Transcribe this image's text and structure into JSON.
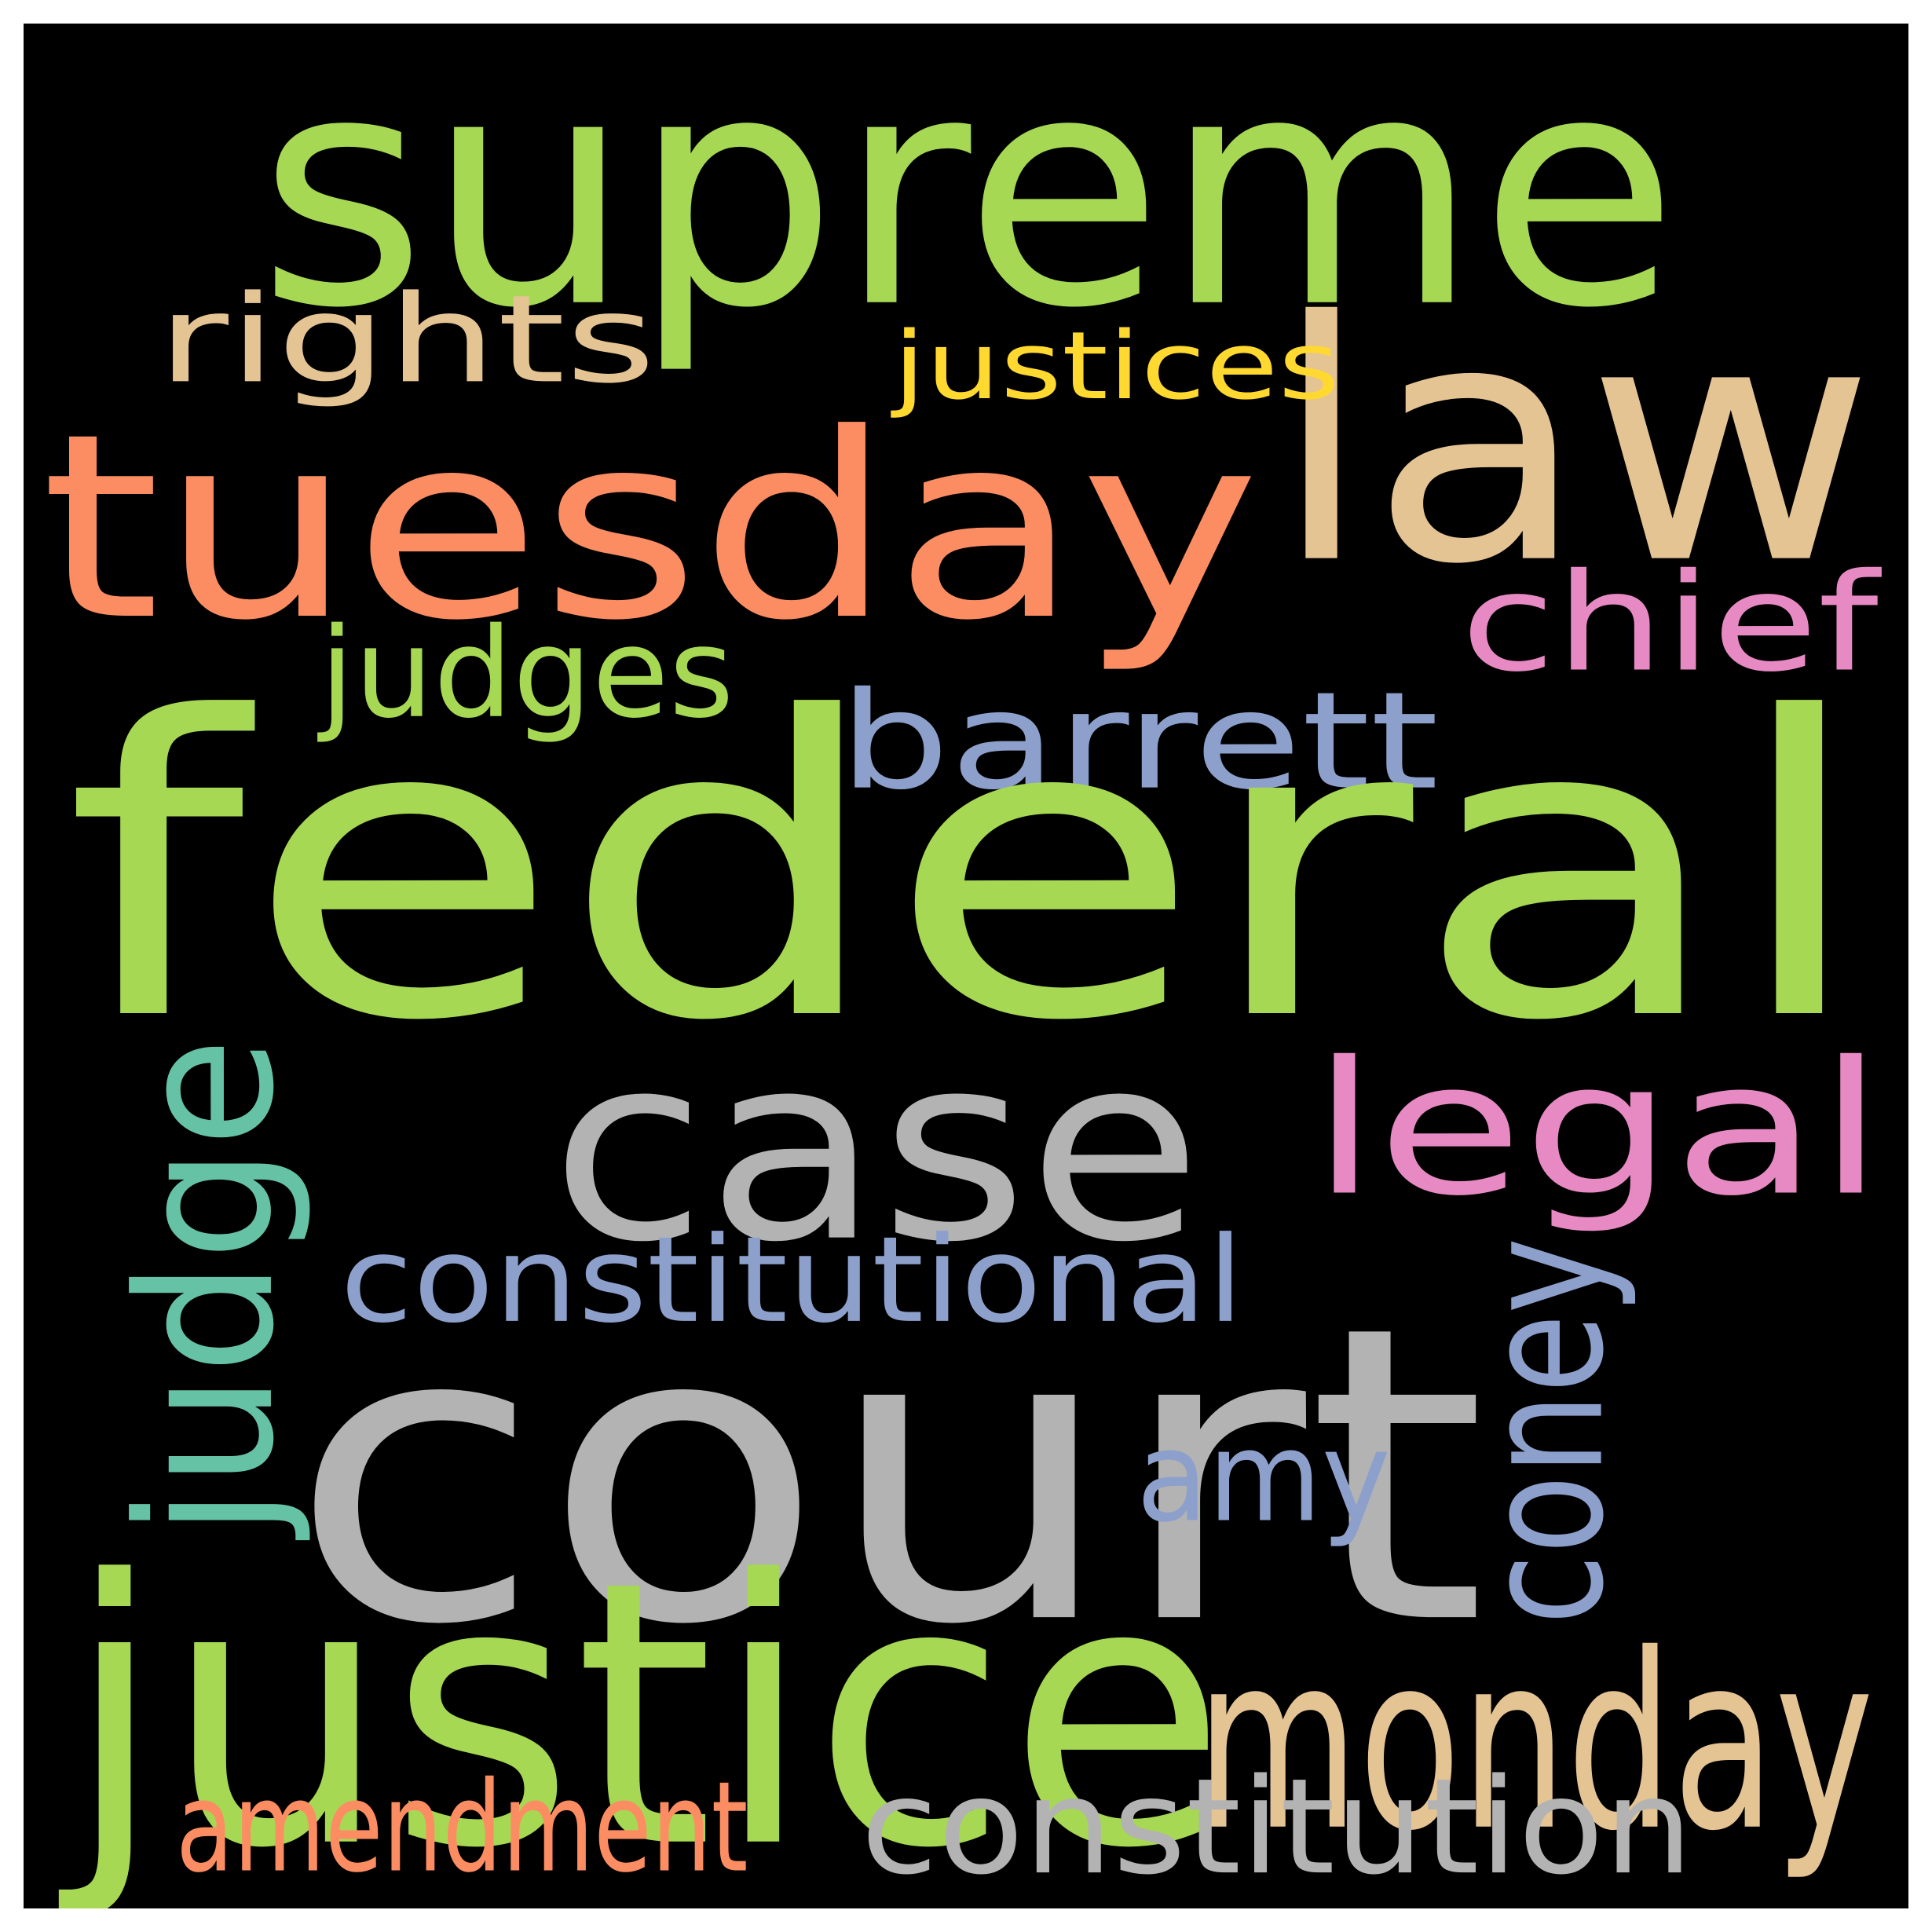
{
  "words": [
    {
      "text": "supreme",
      "color": "#a6d854"
    },
    {
      "text": "law",
      "color": "#e5c494"
    },
    {
      "text": "rights",
      "color": "#e5c494"
    },
    {
      "text": "justices",
      "color": "#ffd92f"
    },
    {
      "text": "tuesday",
      "color": "#fc8d62"
    },
    {
      "text": "chief",
      "color": "#e78ac3"
    },
    {
      "text": "judges",
      "color": "#a6d854"
    },
    {
      "text": "barrett",
      "color": "#8da0cb"
    },
    {
      "text": "federal",
      "color": "#a6d854"
    },
    {
      "text": "case",
      "color": "#b3b3b3"
    },
    {
      "text": "legal",
      "color": "#e78ac3"
    },
    {
      "text": "judge",
      "color": "#66c2a5"
    },
    {
      "text": "constitutional",
      "color": "#8da0cb"
    },
    {
      "text": "coney",
      "color": "#8da0cb"
    },
    {
      "text": "court",
      "color": "#b3b3b3"
    },
    {
      "text": "amy",
      "color": "#8da0cb"
    },
    {
      "text": "justice",
      "color": "#a6d854"
    },
    {
      "text": "monday",
      "color": "#e5c494"
    },
    {
      "text": "amendment",
      "color": "#fc8d62"
    },
    {
      "text": "constitution",
      "color": "#b3b3b3"
    }
  ]
}
